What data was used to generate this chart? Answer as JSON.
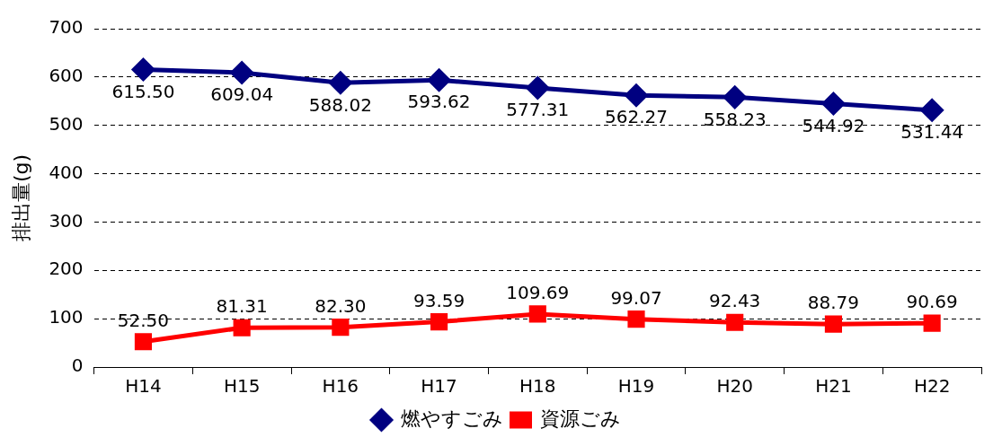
{
  "chart_data": {
    "type": "line",
    "ylabel": "排出量(g)",
    "categories": [
      "H14",
      "H15",
      "H16",
      "H17",
      "H18",
      "H19",
      "H20",
      "H21",
      "H22"
    ],
    "series": [
      {
        "name": "燃やすごみ",
        "color": "#000080",
        "marker": "diamond",
        "values": [
          615.5,
          609.04,
          588.02,
          593.62,
          577.31,
          562.27,
          558.23,
          544.92,
          531.44
        ],
        "value_labels": [
          "615.50",
          "609.04",
          "588.02",
          "593.62",
          "577.31",
          "562.27",
          "558.23",
          "544.92",
          "531.44"
        ]
      },
      {
        "name": "資源ごみ",
        "color": "#ff0000",
        "marker": "square",
        "values": [
          52.5,
          81.31,
          82.3,
          93.59,
          109.69,
          99.07,
          92.43,
          88.79,
          90.69
        ],
        "value_labels": [
          "52.50",
          "81.31",
          "82.30",
          "93.59",
          "109.69",
          "99.07",
          "92.43",
          "88.79",
          "90.69"
        ]
      }
    ],
    "ylim": [
      0,
      700
    ],
    "yticks": [
      0,
      100,
      200,
      300,
      400,
      500,
      600,
      700
    ],
    "grid": "y",
    "legend": "bottom",
    "line_style": "solid"
  }
}
